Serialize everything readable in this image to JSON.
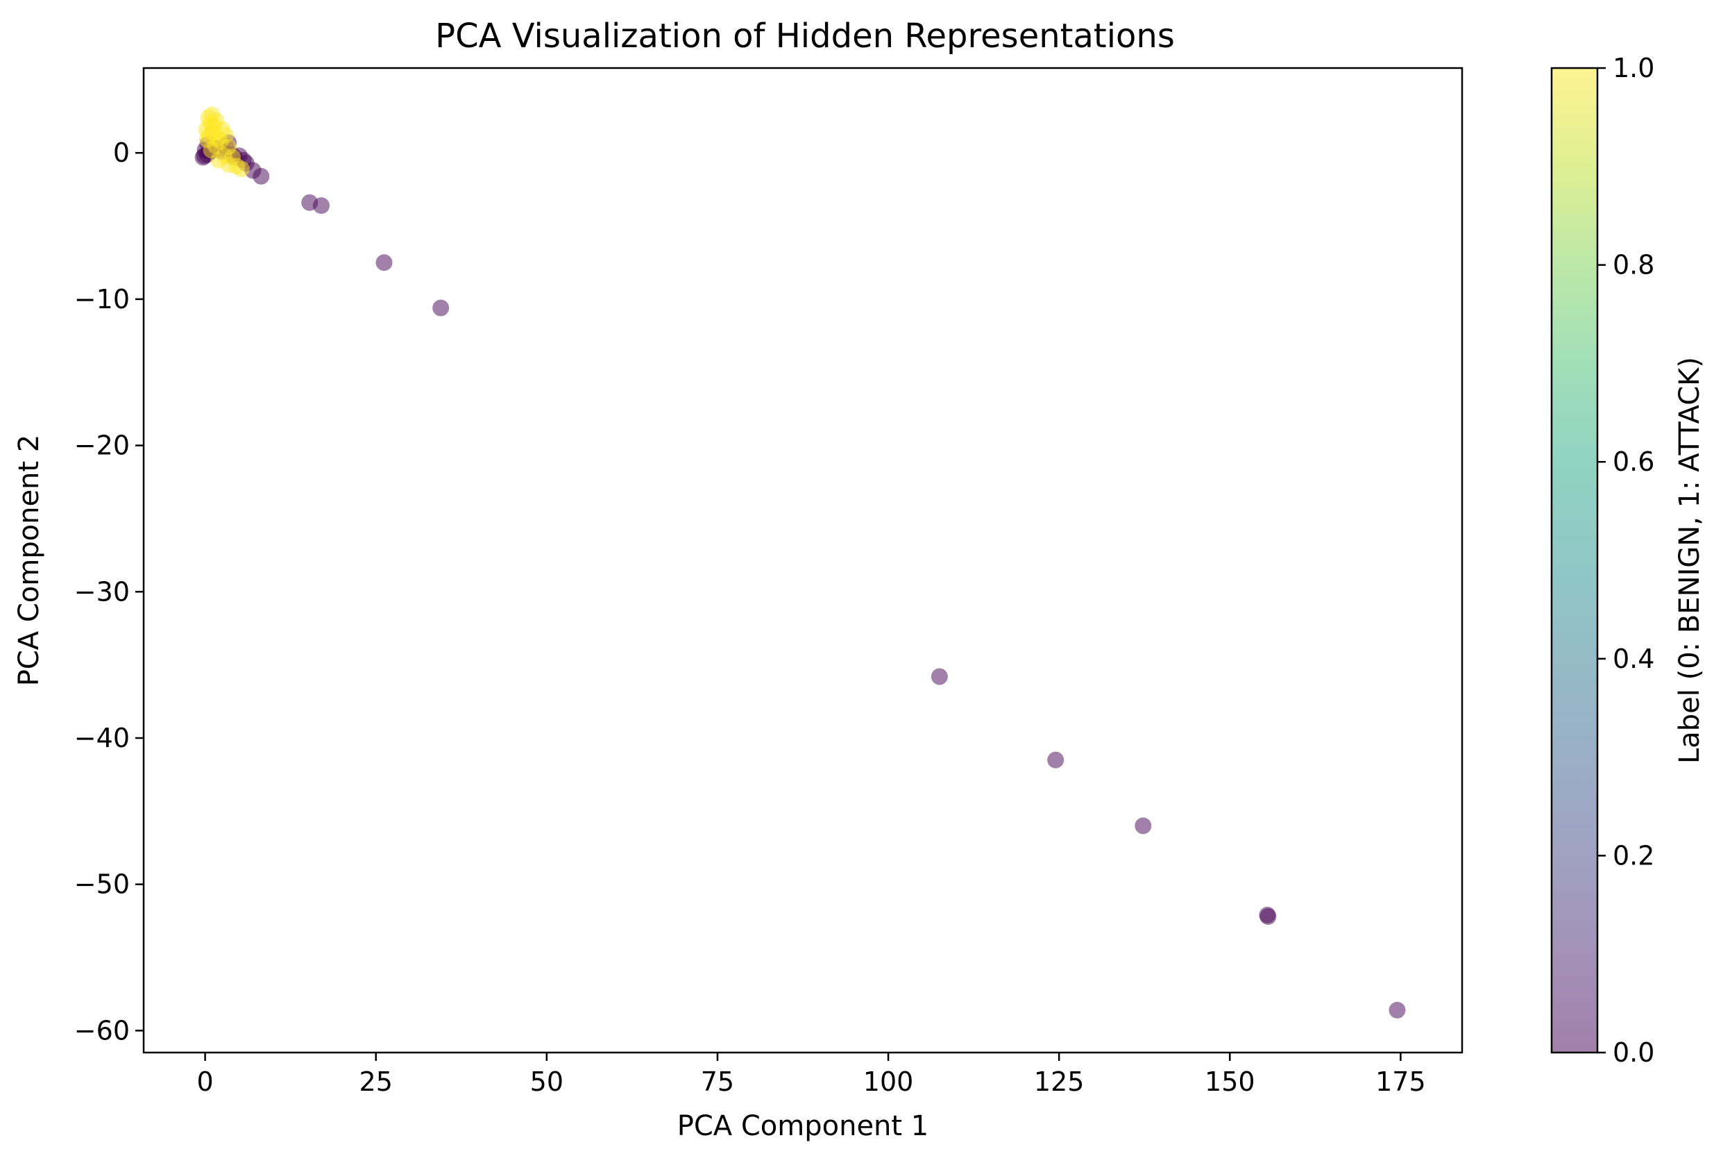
{
  "chart_data": {
    "type": "scatter",
    "title": "PCA Visualization of Hidden Representations",
    "xlabel": "PCA Component 1",
    "ylabel": "PCA Component 2",
    "xlim": [
      -9,
      184
    ],
    "ylim": [
      -61.5,
      5.8
    ],
    "xticks": [
      0,
      25,
      50,
      75,
      100,
      125,
      150,
      175
    ],
    "xtick_labels": [
      "0",
      "25",
      "50",
      "75",
      "100",
      "125",
      "150",
      "175"
    ],
    "yticks": [
      0,
      -10,
      -20,
      -30,
      -40,
      -50,
      -60
    ],
    "ytick_labels": [
      "0",
      "−10",
      "−20",
      "−30",
      "−40",
      "−50",
      "−60"
    ],
    "grid": false,
    "colormap": "viridis",
    "marker_alpha": 0.5,
    "colorbar": {
      "label": "Label (0: BENIGN, 1: ATTACK)",
      "range": [
        0.0,
        1.0
      ],
      "ticks": [
        0.0,
        0.2,
        0.4,
        0.6,
        0.8,
        1.0
      ],
      "tick_labels": [
        "0.0",
        "0.2",
        "0.4",
        "0.6",
        "0.8",
        "1.0"
      ]
    },
    "points": [
      {
        "x": 0.5,
        "y": 2.4,
        "label": 1
      },
      {
        "x": 1.0,
        "y": 2.6,
        "label": 1
      },
      {
        "x": 0.8,
        "y": 2.0,
        "label": 1
      },
      {
        "x": 0.2,
        "y": 1.6,
        "label": 1
      },
      {
        "x": 1.3,
        "y": 1.8,
        "label": 1
      },
      {
        "x": 1.6,
        "y": 2.2,
        "label": 1
      },
      {
        "x": 0.6,
        "y": 1.2,
        "label": 1
      },
      {
        "x": 1.1,
        "y": 1.4,
        "label": 1
      },
      {
        "x": 1.8,
        "y": 1.0,
        "label": 1
      },
      {
        "x": 2.5,
        "y": 1.6,
        "label": 1
      },
      {
        "x": 3.0,
        "y": 1.2,
        "label": 1
      },
      {
        "x": 2.2,
        "y": 0.8,
        "label": 1
      },
      {
        "x": 0.3,
        "y": 0.9,
        "label": 1
      },
      {
        "x": 1.5,
        "y": 0.5,
        "label": 1
      },
      {
        "x": 3.4,
        "y": 0.4,
        "label": 1
      },
      {
        "x": 2.8,
        "y": -0.2,
        "label": 1
      },
      {
        "x": 4.0,
        "y": -0.3,
        "label": 1
      },
      {
        "x": 3.5,
        "y": -0.8,
        "label": 1
      },
      {
        "x": 4.6,
        "y": -0.9,
        "label": 1
      },
      {
        "x": 5.3,
        "y": -1.1,
        "label": 1
      },
      {
        "x": 2.0,
        "y": -0.5,
        "label": 1
      },
      {
        "x": 0.9,
        "y": 0.2,
        "label": 1
      },
      {
        "x": -0.3,
        "y": -0.3,
        "label": 0
      },
      {
        "x": 0.0,
        "y": 0.2,
        "label": 0
      },
      {
        "x": 0.4,
        "y": 0.6,
        "label": 0
      },
      {
        "x": 0.8,
        "y": 0.1,
        "label": 0
      },
      {
        "x": -0.1,
        "y": -0.2,
        "label": 0
      },
      {
        "x": 0.3,
        "y": -0.1,
        "label": 0
      },
      {
        "x": 1.2,
        "y": 0.4,
        "label": 0
      },
      {
        "x": 2.0,
        "y": 0.3,
        "label": 0
      },
      {
        "x": 2.5,
        "y": 0.1,
        "label": 0
      },
      {
        "x": 3.0,
        "y": 0.5,
        "label": 0
      },
      {
        "x": 3.4,
        "y": 0.7,
        "label": 0
      },
      {
        "x": 3.8,
        "y": -0.1,
        "label": 0
      },
      {
        "x": 4.3,
        "y": -0.3,
        "label": 0
      },
      {
        "x": 5.0,
        "y": -0.2,
        "label": 0
      },
      {
        "x": 5.6,
        "y": -0.5,
        "label": 0
      },
      {
        "x": 6.0,
        "y": -0.7,
        "label": 0
      },
      {
        "x": 7.0,
        "y": -1.2,
        "label": 0
      },
      {
        "x": 8.2,
        "y": -1.6,
        "label": 0
      },
      {
        "x": 15.3,
        "y": -3.4,
        "label": 0
      },
      {
        "x": 17.0,
        "y": -3.6,
        "label": 0
      },
      {
        "x": 26.2,
        "y": -7.5,
        "label": 0
      },
      {
        "x": 34.5,
        "y": -10.6,
        "label": 0
      },
      {
        "x": 107.5,
        "y": -35.8,
        "label": 0
      },
      {
        "x": 124.5,
        "y": -41.5,
        "label": 0
      },
      {
        "x": 137.3,
        "y": -46.0,
        "label": 0
      },
      {
        "x": 155.5,
        "y": -52.1,
        "label": 0
      },
      {
        "x": 155.6,
        "y": -52.2,
        "label": 0
      },
      {
        "x": 174.5,
        "y": -58.6,
        "label": 0
      }
    ]
  }
}
